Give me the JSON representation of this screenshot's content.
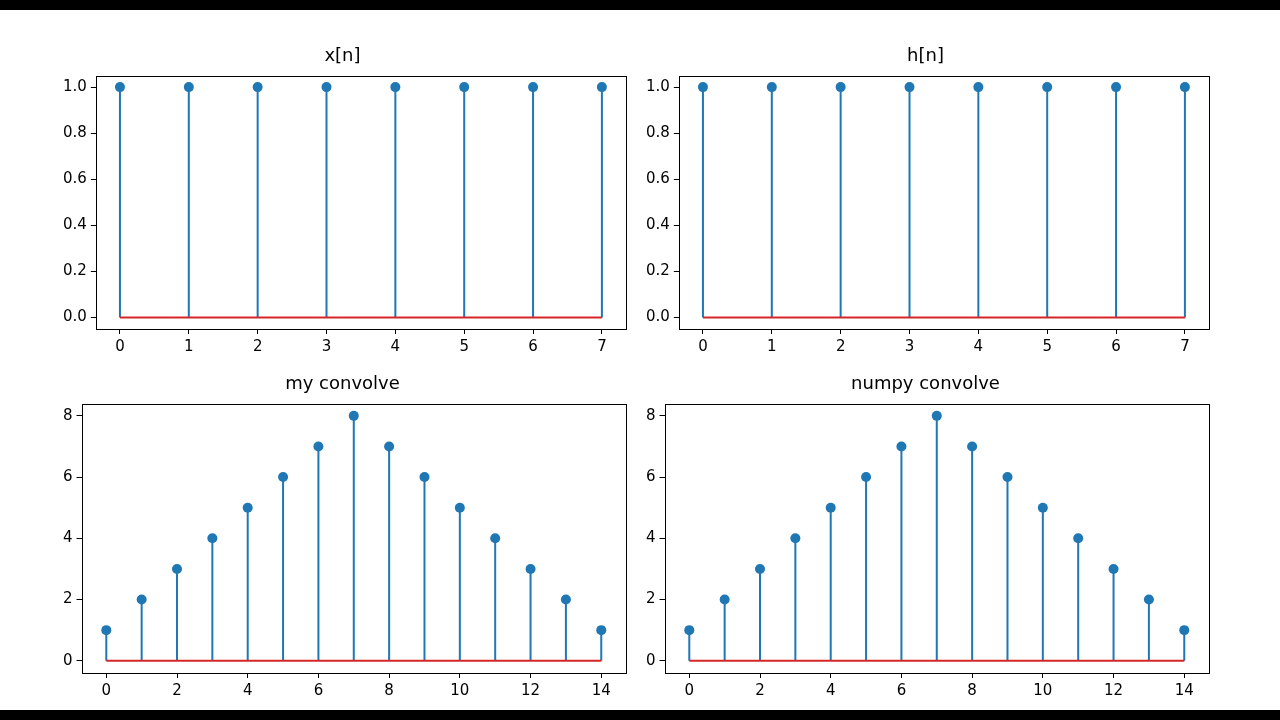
{
  "chart_data": [
    {
      "type": "stem",
      "title": "x[n]",
      "x": [
        0,
        1,
        2,
        3,
        4,
        5,
        6,
        7
      ],
      "values": [
        1,
        1,
        1,
        1,
        1,
        1,
        1,
        1
      ],
      "color": "#1f77b4",
      "xlim": [
        -0.35,
        7.35
      ],
      "xticks": [
        0,
        1,
        2,
        3,
        4,
        5,
        6,
        7
      ],
      "ylim": [
        -0.05,
        1.05
      ],
      "yticks": [
        {
          "value": 0,
          "label": "0.0"
        },
        {
          "value": 0.2,
          "label": "0.2"
        },
        {
          "value": 0.4,
          "label": "0.4"
        },
        {
          "value": 0.6,
          "label": "0.6"
        },
        {
          "value": 0.8,
          "label": "0.8"
        },
        {
          "value": 1,
          "label": "1.0"
        }
      ],
      "grid": false
    },
    {
      "type": "stem",
      "title": "h[n]",
      "x": [
        0,
        1,
        2,
        3,
        4,
        5,
        6,
        7
      ],
      "values": [
        1,
        1,
        1,
        1,
        1,
        1,
        1,
        1
      ],
      "color": "#1f77b4",
      "xlim": [
        -0.35,
        7.35
      ],
      "xticks": [
        0,
        1,
        2,
        3,
        4,
        5,
        6,
        7
      ],
      "ylim": [
        -0.05,
        1.05
      ],
      "yticks": [
        {
          "value": 0,
          "label": "0.0"
        },
        {
          "value": 0.2,
          "label": "0.2"
        },
        {
          "value": 0.4,
          "label": "0.4"
        },
        {
          "value": 0.6,
          "label": "0.6"
        },
        {
          "value": 0.8,
          "label": "0.8"
        },
        {
          "value": 1,
          "label": "1.0"
        }
      ],
      "grid": false
    },
    {
      "type": "stem",
      "title": "my convolve",
      "x": [
        0,
        1,
        2,
        3,
        4,
        5,
        6,
        7,
        8,
        9,
        10,
        11,
        12,
        13,
        14
      ],
      "values": [
        1,
        2,
        3,
        4,
        5,
        6,
        7,
        8,
        7,
        6,
        5,
        4,
        3,
        2,
        1
      ],
      "color": "#1f77b4",
      "xlim": [
        -0.7,
        14.7
      ],
      "xticks": [
        0,
        2,
        4,
        6,
        8,
        10,
        12,
        14
      ],
      "ylim": [
        -0.4,
        8.4
      ],
      "yticks": [
        0,
        2,
        4,
        6,
        8
      ],
      "grid": false
    },
    {
      "type": "stem",
      "title": "numpy convolve",
      "x": [
        0,
        1,
        2,
        3,
        4,
        5,
        6,
        7,
        8,
        9,
        10,
        11,
        12,
        13,
        14
      ],
      "values": [
        1,
        2,
        3,
        4,
        5,
        6,
        7,
        8,
        7,
        6,
        5,
        4,
        3,
        2,
        1
      ],
      "color": "#1f77b4",
      "xlim": [
        -0.7,
        14.7
      ],
      "xticks": [
        0,
        2,
        4,
        6,
        8,
        10,
        12,
        14
      ],
      "ylim": [
        -0.4,
        8.4
      ],
      "yticks": [
        0,
        2,
        4,
        6,
        8
      ],
      "grid": false
    }
  ]
}
